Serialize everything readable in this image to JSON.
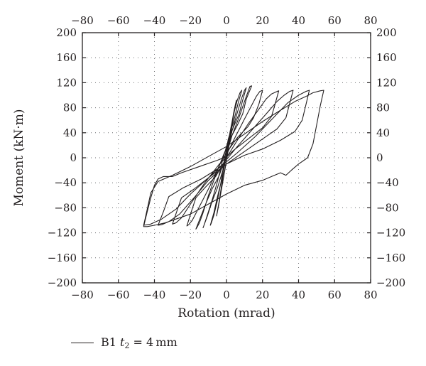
{
  "chart_data": {
    "type": "line",
    "xlabel": "Rotation (mrad)",
    "ylabel": "Moment (kN·m)",
    "xlim": [
      -80,
      80
    ],
    "ylim": [
      -200,
      200
    ],
    "x_ticks": [
      -80,
      -60,
      -40,
      -20,
      0,
      20,
      40,
      60,
      80
    ],
    "y_ticks": [
      -200,
      -160,
      -120,
      -80,
      -40,
      0,
      40,
      80,
      120,
      160,
      200
    ],
    "x_tick_labels": [
      "−80",
      "−60",
      "−40",
      "−20",
      "0",
      "20",
      "40",
      "60",
      "80"
    ],
    "y_tick_labels": [
      "−200",
      "−160",
      "−120",
      "−80",
      "−40",
      "0",
      "40",
      "80",
      "120",
      "160",
      "200"
    ],
    "grid": true,
    "secondary_axes": "top and right mirror bottom and left",
    "legend_position": "bottom-left, below plot",
    "series_color": "#231f20",
    "legend": {
      "prefix": "B1 ",
      "variable": "t",
      "subscript": "2",
      "suffix": " = 4 mm"
    },
    "series": [
      {
        "name": "B1 t2 = 4 mm",
        "points": [
          [
            0,
            0
          ],
          [
            1,
            18
          ],
          [
            2,
            38
          ],
          [
            3,
            56
          ],
          [
            4,
            72
          ],
          [
            5,
            86
          ],
          [
            5.5,
            92
          ],
          [
            4,
            68
          ],
          [
            2,
            30
          ],
          [
            0,
            -5
          ],
          [
            -2,
            -38
          ],
          [
            -4,
            -70
          ],
          [
            -5,
            -86
          ],
          [
            -5.5,
            -93
          ],
          [
            -4,
            -68
          ],
          [
            -2,
            -30
          ],
          [
            0,
            8
          ],
          [
            2,
            42
          ],
          [
            4,
            70
          ],
          [
            6,
            92
          ],
          [
            7.5,
            104
          ],
          [
            8.5,
            108
          ],
          [
            6.5,
            88
          ],
          [
            4,
            58
          ],
          [
            1,
            30
          ],
          [
            -1,
            0
          ],
          [
            -3,
            -38
          ],
          [
            -5,
            -68
          ],
          [
            -7,
            -92
          ],
          [
            -8.5,
            -105
          ],
          [
            -9,
            -108
          ],
          [
            -7,
            -88
          ],
          [
            -5,
            -62
          ],
          [
            -2,
            -28
          ],
          [
            0,
            5
          ],
          [
            3,
            42
          ],
          [
            6,
            72
          ],
          [
            8.5,
            96
          ],
          [
            10,
            108
          ],
          [
            11,
            112
          ],
          [
            9,
            92
          ],
          [
            7,
            70
          ],
          [
            4,
            50
          ],
          [
            1,
            28
          ],
          [
            -2,
            -2
          ],
          [
            -5,
            -38
          ],
          [
            -8,
            -68
          ],
          [
            -11,
            -95
          ],
          [
            -12.5,
            -108
          ],
          [
            -13,
            -112
          ],
          [
            -10.5,
            -92
          ],
          [
            -8,
            -70
          ],
          [
            -5,
            -48
          ],
          [
            -2,
            -20
          ],
          [
            0,
            5
          ],
          [
            3,
            35
          ],
          [
            7,
            65
          ],
          [
            10,
            90
          ],
          [
            12,
            106
          ],
          [
            13,
            114
          ],
          [
            14,
            115
          ],
          [
            11,
            94
          ],
          [
            9,
            70
          ],
          [
            6,
            52
          ],
          [
            2,
            30
          ],
          [
            -2,
            2
          ],
          [
            -6,
            -28
          ],
          [
            -10,
            -60
          ],
          [
            -13,
            -88
          ],
          [
            -15,
            -104
          ],
          [
            -16.5,
            -112
          ],
          [
            -17,
            -114
          ],
          [
            -14,
            -92
          ],
          [
            -11,
            -70
          ],
          [
            -8,
            -50
          ],
          [
            -4,
            -28
          ],
          [
            0,
            5
          ],
          [
            5,
            34
          ],
          [
            10,
            62
          ],
          [
            14,
            84
          ],
          [
            16.5,
            98
          ],
          [
            18.5,
            106
          ],
          [
            20,
            108
          ],
          [
            18,
            86
          ],
          [
            15,
            64
          ],
          [
            12,
            50
          ],
          [
            6,
            32
          ],
          [
            1,
            12
          ],
          [
            -4,
            -12
          ],
          [
            -9,
            -44
          ],
          [
            -15,
            -78
          ],
          [
            -19,
            -100
          ],
          [
            -21,
            -107
          ],
          [
            -22,
            -109
          ],
          [
            -19.5,
            -86
          ],
          [
            -17,
            -64
          ],
          [
            -12,
            -48
          ],
          [
            -6,
            -30
          ],
          [
            0,
            0
          ],
          [
            6,
            28
          ],
          [
            12,
            54
          ],
          [
            18,
            78
          ],
          [
            22,
            94
          ],
          [
            25,
            102
          ],
          [
            28,
            106
          ],
          [
            29,
            107
          ],
          [
            27,
            86
          ],
          [
            25,
            66
          ],
          [
            20,
            48
          ],
          [
            12,
            30
          ],
          [
            4,
            12
          ],
          [
            -4,
            -10
          ],
          [
            -12,
            -40
          ],
          [
            -20,
            -74
          ],
          [
            -25,
            -96
          ],
          [
            -28,
            -104
          ],
          [
            -30,
            -106
          ],
          [
            -27.5,
            -85
          ],
          [
            -25,
            -64
          ],
          [
            -18,
            -50
          ],
          [
            -10,
            -32
          ],
          [
            -2,
            -10
          ],
          [
            6,
            18
          ],
          [
            14,
            44
          ],
          [
            22,
            70
          ],
          [
            28,
            90
          ],
          [
            32,
            100
          ],
          [
            35,
            106
          ],
          [
            37,
            108
          ],
          [
            35,
            86
          ],
          [
            33,
            64
          ],
          [
            28,
            46
          ],
          [
            20,
            30
          ],
          [
            10,
            10
          ],
          [
            0,
            -10
          ],
          [
            -10,
            -36
          ],
          [
            -18,
            -64
          ],
          [
            -26,
            -90
          ],
          [
            -32,
            -102
          ],
          [
            -36,
            -107
          ],
          [
            -38,
            -108
          ],
          [
            -35,
            -86
          ],
          [
            -32,
            -62
          ],
          [
            -24,
            -48
          ],
          [
            -14,
            -34
          ],
          [
            -4,
            -16
          ],
          [
            6,
            8
          ],
          [
            16,
            34
          ],
          [
            26,
            64
          ],
          [
            34,
            88
          ],
          [
            40,
            100
          ],
          [
            44,
            106
          ],
          [
            46,
            108
          ],
          [
            44,
            84
          ],
          [
            42,
            60
          ],
          [
            38,
            42
          ],
          [
            30,
            28
          ],
          [
            20,
            14
          ],
          [
            10,
            4
          ],
          [
            0,
            -10
          ],
          [
            -10,
            -32
          ],
          [
            -20,
            -58
          ],
          [
            -28,
            -82
          ],
          [
            -36,
            -98
          ],
          [
            -42,
            -106
          ],
          [
            -46,
            -108
          ],
          [
            -44,
            -82
          ],
          [
            -42,
            -56
          ],
          [
            -38,
            -38
          ],
          [
            -30,
            -28
          ],
          [
            -20,
            -14
          ],
          [
            -10,
            2
          ],
          [
            0,
            18
          ],
          [
            10,
            38
          ],
          [
            20,
            58
          ],
          [
            30,
            76
          ],
          [
            38,
            90
          ],
          [
            44,
            98
          ],
          [
            48,
            104
          ],
          [
            52,
            107
          ],
          [
            54,
            108
          ],
          [
            52,
            82
          ],
          [
            50,
            52
          ],
          [
            48,
            22
          ],
          [
            45,
            0
          ],
          [
            40,
            -10
          ],
          [
            36,
            -20
          ],
          [
            33,
            -28
          ],
          [
            30,
            -24
          ],
          [
            25,
            -30
          ],
          [
            20,
            -36
          ],
          [
            10,
            -44
          ],
          [
            0,
            -58
          ],
          [
            -10,
            -74
          ],
          [
            -20,
            -90
          ],
          [
            -28,
            -98
          ],
          [
            -34,
            -104
          ],
          [
            -40,
            -108
          ],
          [
            -44,
            -110
          ],
          [
            -46,
            -110
          ],
          [
            -44,
            -86
          ],
          [
            -42,
            -64
          ],
          [
            -40,
            -44
          ],
          [
            -38,
            -34
          ],
          [
            -35,
            -30
          ],
          [
            -30,
            -30
          ],
          [
            -25,
            -24
          ],
          [
            -15,
            -14
          ],
          [
            -5,
            -4
          ],
          [
            0,
            2
          ]
        ]
      }
    ]
  }
}
